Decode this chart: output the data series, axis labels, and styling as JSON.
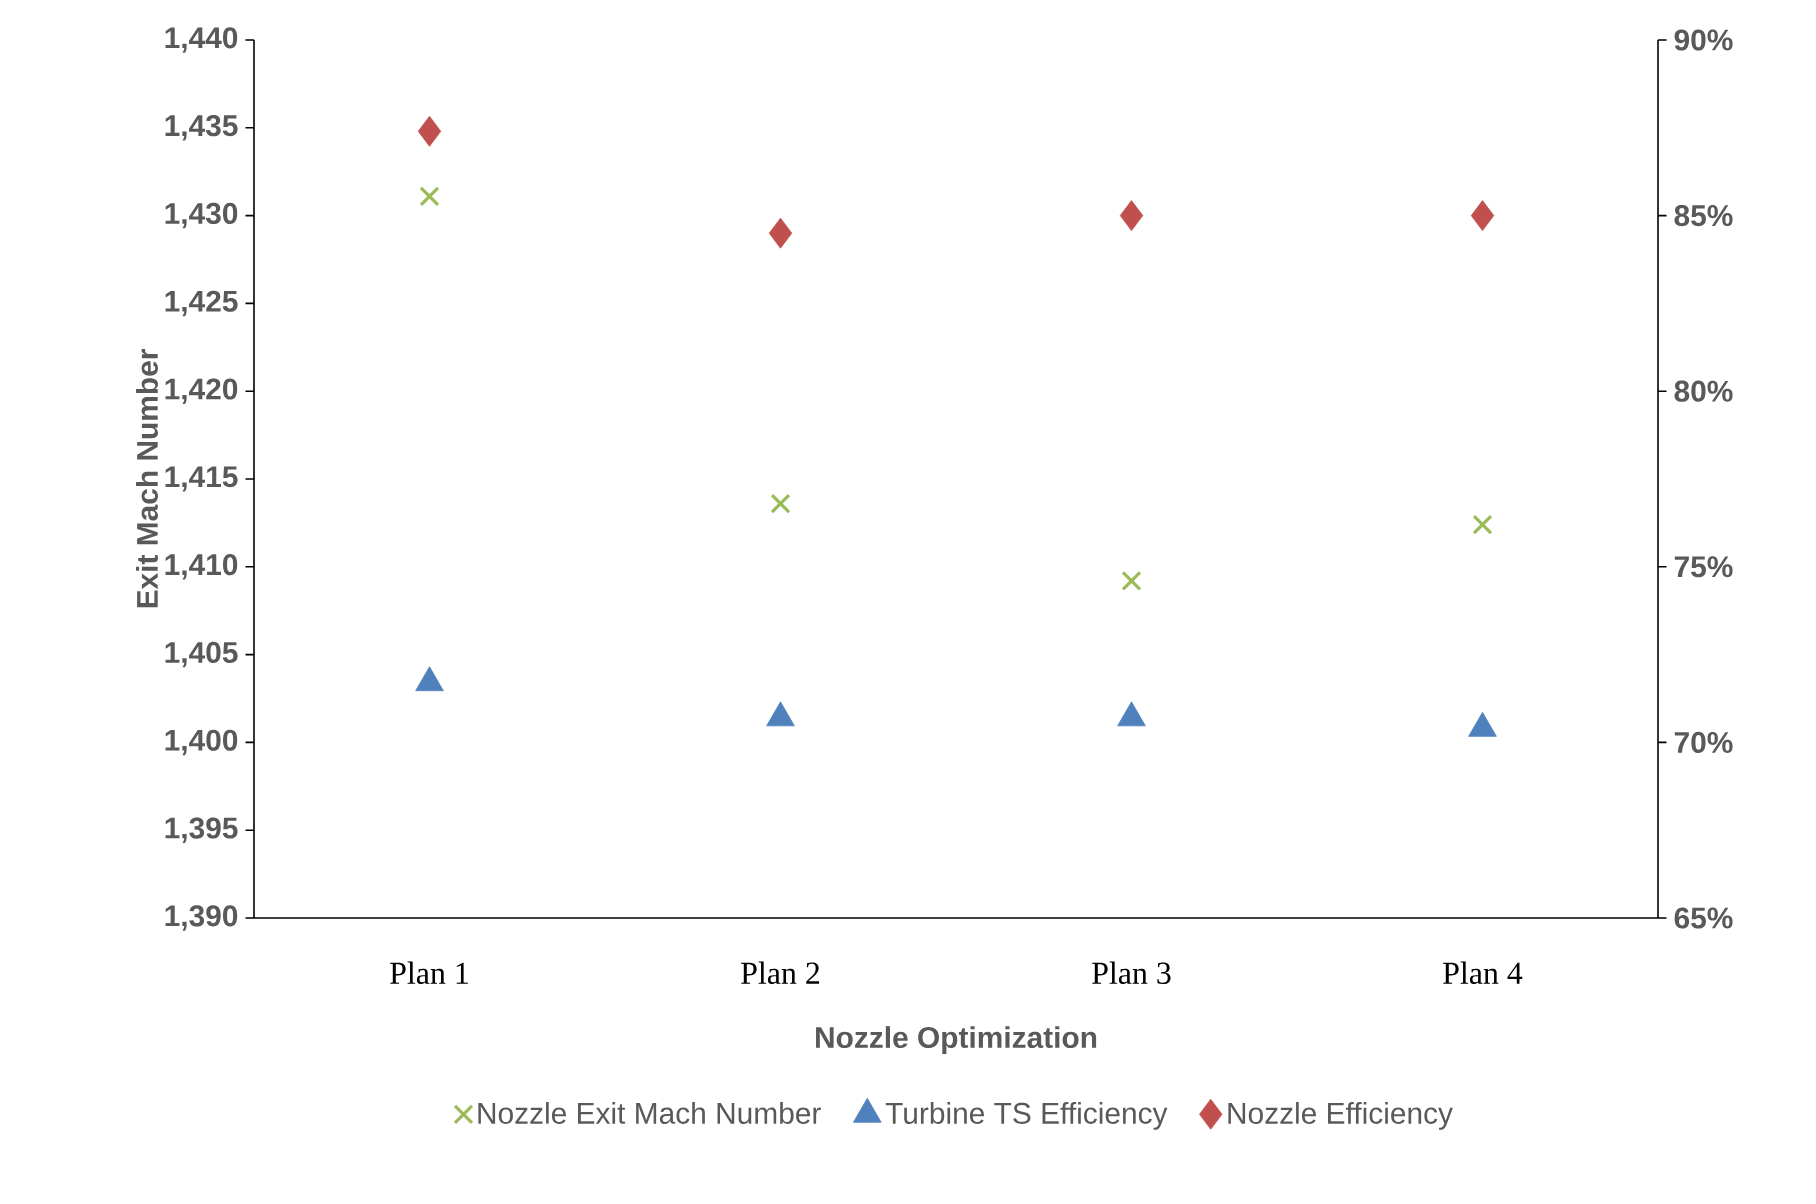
{
  "chart_data": {
    "type": "scatter",
    "xlabel": "Nozzle Optimization",
    "ylabel": "Exit Mach Number",
    "categories": [
      "Plan 1",
      "Plan 2",
      "Plan 3",
      "Plan 4"
    ],
    "series": [
      {
        "name": "Nozzle Exit Mach Number",
        "color": "#9bbb59",
        "marker": "cross",
        "values": [
          1431.1,
          1413.6,
          1409.2,
          1412.4
        ]
      },
      {
        "name": "Turbine TS Efficiency",
        "color": "#4f81bd",
        "marker": "triangle",
        "axis": "y2",
        "values": [
          71.7,
          70.7,
          70.7,
          70.4
        ]
      },
      {
        "name": "Nozzle Efficiency",
        "color": "#c0504d",
        "marker": "diamond",
        "axis": "y2",
        "values": [
          87.4,
          84.5,
          85.0,
          85.0
        ]
      }
    ],
    "ylim": [
      1390,
      1440
    ],
    "yticks": [
      {
        "value": 1390,
        "label": "1,390"
      },
      {
        "value": 1395,
        "label": "1,395"
      },
      {
        "value": 1400,
        "label": "1,400"
      },
      {
        "value": 1405,
        "label": "1,405"
      },
      {
        "value": 1410,
        "label": "1,410"
      },
      {
        "value": 1415,
        "label": "1,415"
      },
      {
        "value": 1420,
        "label": "1,420"
      },
      {
        "value": 1425,
        "label": "1,425"
      },
      {
        "value": 1430,
        "label": "1,430"
      },
      {
        "value": 1435,
        "label": "1,435"
      },
      {
        "value": 1440,
        "label": "1,440"
      }
    ],
    "y2lim": [
      65,
      90
    ],
    "y2ticks": [
      {
        "value": 65,
        "label": "65%"
      },
      {
        "value": 70,
        "label": "70%"
      },
      {
        "value": 75,
        "label": "75%"
      },
      {
        "value": 80,
        "label": "80%"
      },
      {
        "value": 85,
        "label": "85%"
      },
      {
        "value": 90,
        "label": "90%"
      }
    ],
    "legend": "bottom"
  }
}
